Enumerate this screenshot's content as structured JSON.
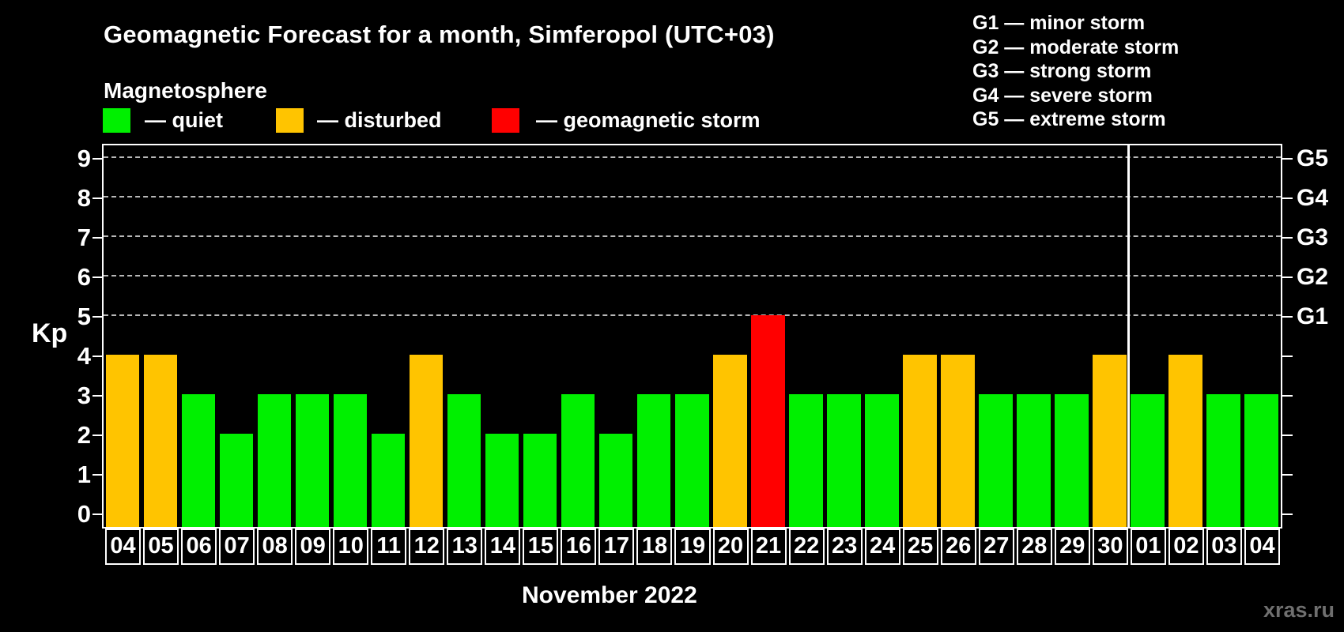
{
  "header": {
    "title": "Geomagnetic Forecast for a month, Simferopol (UTC+03)",
    "subtitle": "Magnetosphere"
  },
  "legend": {
    "items": [
      {
        "key": "quiet",
        "label": "— quiet",
        "color": "#00f000"
      },
      {
        "key": "disturbed",
        "label": "— disturbed",
        "color": "#ffc400"
      },
      {
        "key": "storm",
        "label": "— geomagnetic storm",
        "color": "#ff0000"
      }
    ]
  },
  "storm_scale_legend": {
    "lines": [
      "G1 — minor storm",
      "G2 — moderate storm",
      "G3 — strong storm",
      "G4 — severe storm",
      "G5 — extreme storm"
    ]
  },
  "footer": {
    "month_label": "November 2022",
    "watermark": "xras.ru"
  },
  "chart_data": {
    "type": "bar",
    "title": "Geomagnetic Forecast for a month, Simferopol (UTC+03)",
    "ylabel": "Kp",
    "xlabel": "November 2022",
    "ylim": [
      0,
      9
    ],
    "y_ticks": [
      0,
      1,
      2,
      3,
      4,
      5,
      6,
      7,
      8,
      9
    ],
    "gridlines_at": [
      5,
      6,
      7,
      8,
      9
    ],
    "grid": "dashed horizontal at Kp 5-9 only",
    "legend_position": "top",
    "right_axis_labels": [
      {
        "kp": 5,
        "label": "G1"
      },
      {
        "kp": 6,
        "label": "G2"
      },
      {
        "kp": 7,
        "label": "G3"
      },
      {
        "kp": 8,
        "label": "G4"
      },
      {
        "kp": 9,
        "label": "G5"
      }
    ],
    "categories": [
      "04",
      "05",
      "06",
      "07",
      "08",
      "09",
      "10",
      "11",
      "12",
      "13",
      "14",
      "15",
      "16",
      "17",
      "18",
      "19",
      "20",
      "21",
      "22",
      "23",
      "24",
      "25",
      "26",
      "27",
      "28",
      "29",
      "30",
      "01",
      "02",
      "03",
      "04"
    ],
    "values": [
      4,
      4,
      3,
      2,
      3,
      3,
      3,
      2,
      4,
      3,
      2,
      2,
      3,
      2,
      3,
      3,
      4,
      5,
      3,
      3,
      3,
      4,
      4,
      3,
      3,
      3,
      4,
      3,
      4,
      3,
      3
    ],
    "levels": [
      "disturbed",
      "disturbed",
      "quiet",
      "quiet",
      "quiet",
      "quiet",
      "quiet",
      "quiet",
      "disturbed",
      "quiet",
      "quiet",
      "quiet",
      "quiet",
      "quiet",
      "quiet",
      "quiet",
      "disturbed",
      "storm",
      "quiet",
      "quiet",
      "quiet",
      "disturbed",
      "disturbed",
      "quiet",
      "quiet",
      "quiet",
      "disturbed",
      "quiet",
      "disturbed",
      "quiet",
      "quiet"
    ],
    "colors": {
      "quiet": "#00f000",
      "disturbed": "#ffc400",
      "storm": "#ff0000"
    },
    "month_separator_after_index": 26
  }
}
